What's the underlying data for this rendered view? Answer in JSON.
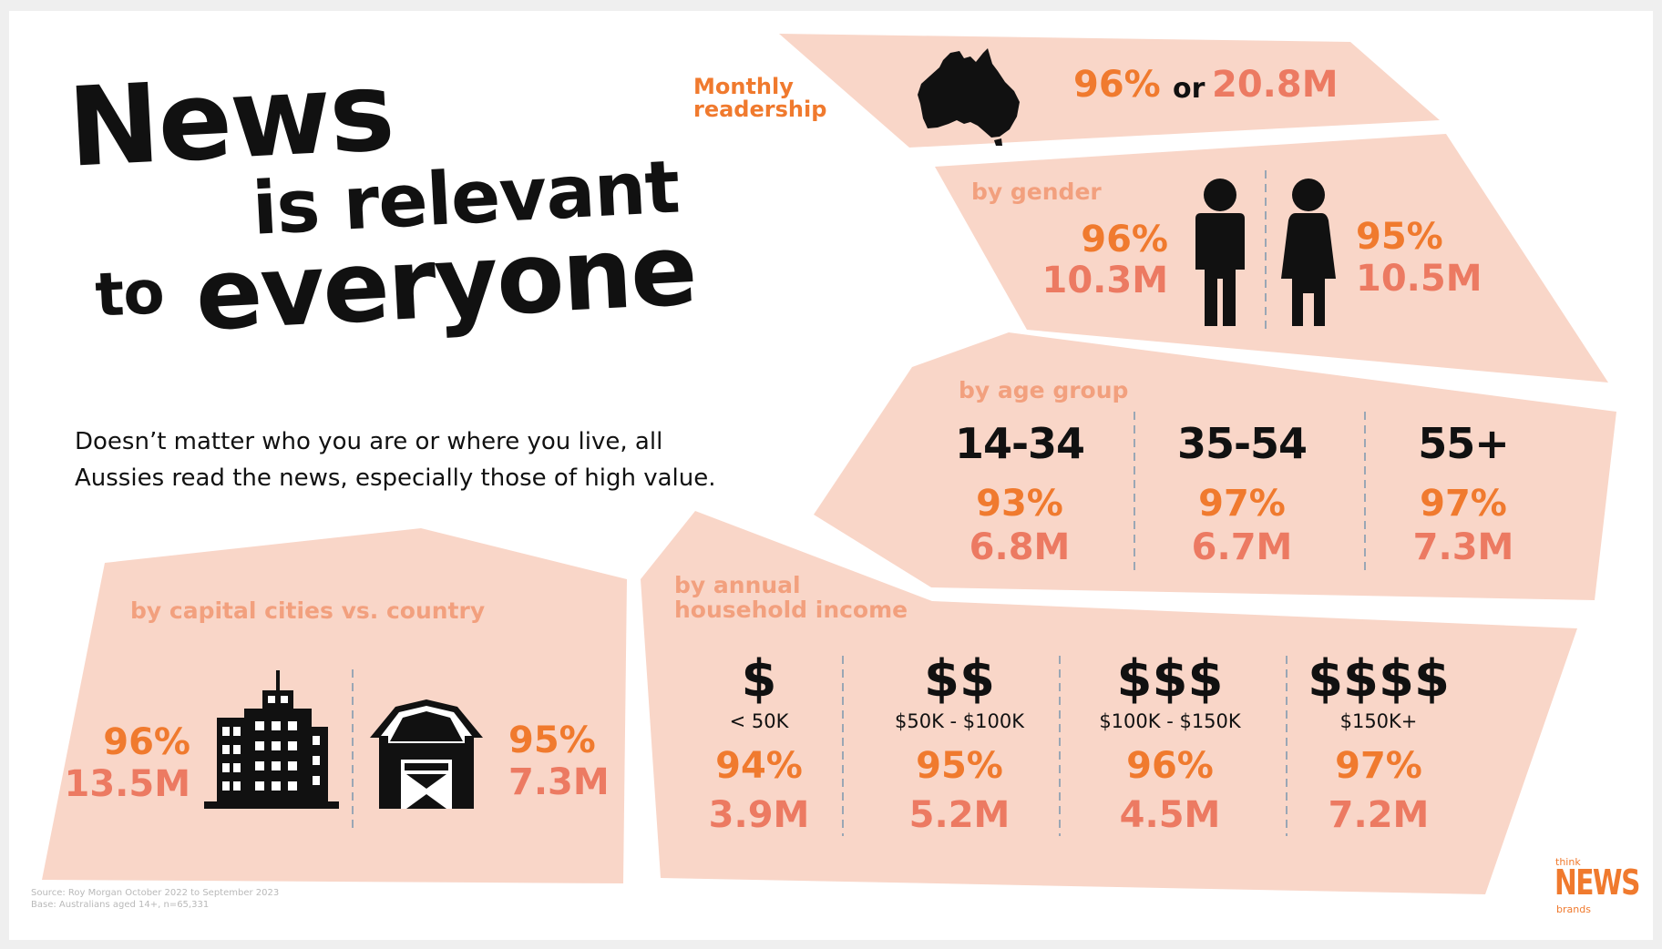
{
  "title": {
    "line1": "News",
    "line2": "is relevant",
    "line3_small": "to",
    "line3_big": "everyone"
  },
  "intro": {
    "line1": "Doesn’t matter who you are or where you live, all",
    "line2": "Aussies read the news, especially those of high value."
  },
  "monthly": {
    "label_line1": "Monthly",
    "label_line2": "readership",
    "pct": "96%",
    "or_word": "or",
    "total": "20.8M"
  },
  "gender": {
    "label": "by gender",
    "male": {
      "pct": "96%",
      "count": "10.3M"
    },
    "female": {
      "pct": "95%",
      "count": "10.5M"
    }
  },
  "age": {
    "label": "by age group",
    "groups": [
      {
        "range": "14-34",
        "pct": "93%",
        "count": "6.8M"
      },
      {
        "range": "35-54",
        "pct": "97%",
        "count": "6.7M"
      },
      {
        "range": "55+",
        "pct": "97%",
        "count": "7.3M"
      }
    ]
  },
  "location": {
    "label": "by capital cities vs. country",
    "city": {
      "pct": "96%",
      "count": "13.5M"
    },
    "country": {
      "pct": "95%",
      "count": "7.3M"
    }
  },
  "income": {
    "label_line1": "by annual",
    "label_line2": "household income",
    "groups": [
      {
        "symbol": "$",
        "range": "< 50K",
        "pct": "94%",
        "count": "3.9M"
      },
      {
        "symbol": "$$",
        "range": "$50K - $100K",
        "pct": "95%",
        "count": "5.2M"
      },
      {
        "symbol": "$$$",
        "range": "$100K - $150K",
        "pct": "96%",
        "count": "4.5M"
      },
      {
        "symbol": "$$$$",
        "range": "$150K+",
        "pct": "97%",
        "count": "7.2M"
      }
    ]
  },
  "source": {
    "line1": "Source: Roy Morgan October 2022 to September 2023",
    "line2": "Base: Australians aged 14+, n=65,331"
  },
  "logo": {
    "top": "think",
    "main": "NEWS",
    "bottom": "brands"
  },
  "icons": [
    "australia-map-icon",
    "male-icon",
    "female-icon",
    "city-buildings-icon",
    "barn-icon"
  ],
  "colors": {
    "panel": "#f9d6c8",
    "accent_orange": "#f07a2e",
    "accent_salmon": "#ec7a62",
    "label_light": "#f2a07e",
    "text": "#111111",
    "background": "#ffffff"
  }
}
